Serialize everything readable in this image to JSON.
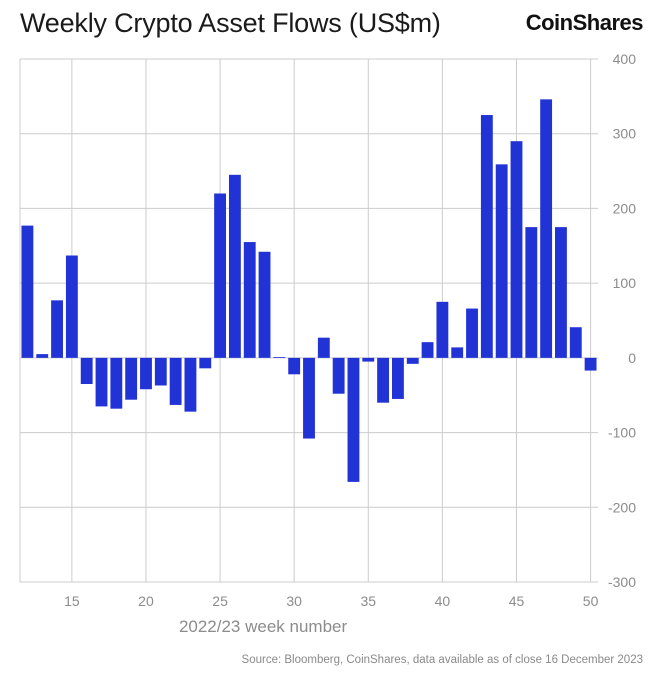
{
  "header": {
    "title": "Weekly Crypto Asset Flows (US$m)",
    "brand": "CoinShares"
  },
  "footer": {
    "source": "Source: Bloomberg, CoinShares, data available as of close 16 December 2023"
  },
  "colors": {
    "bar": "#2233d6",
    "grid": "#cccccc",
    "text": "#8c8c8c"
  },
  "chart_data": {
    "type": "bar",
    "title": "Weekly Crypto Asset Flows (US$m)",
    "xlabel": "2022/23 week number",
    "ylabel": "",
    "x": [
      12,
      13,
      14,
      15,
      16,
      17,
      18,
      19,
      20,
      21,
      22,
      23,
      24,
      25,
      26,
      27,
      28,
      29,
      30,
      31,
      32,
      33,
      34,
      35,
      36,
      37,
      38,
      39,
      40,
      41,
      42,
      43,
      44,
      45,
      46,
      47,
      48,
      49,
      50
    ],
    "values": [
      177,
      5,
      77,
      137,
      -35,
      -65,
      -68,
      -56,
      -42,
      -37,
      -63,
      -72,
      -14,
      220,
      245,
      155,
      142,
      1,
      -22,
      -108,
      27,
      -48,
      -166,
      -5,
      -60,
      -55,
      -8,
      21,
      75,
      14,
      66,
      325,
      259,
      290,
      175,
      346,
      175,
      41,
      -17
    ],
    "xlim": [
      11.5,
      50.5
    ],
    "ylim": [
      -300,
      400
    ],
    "x_ticks": [
      15,
      20,
      25,
      30,
      35,
      40,
      45,
      50
    ],
    "y_ticks": [
      400,
      300,
      200,
      100,
      0,
      -100,
      -200,
      -300
    ],
    "grid": true
  }
}
